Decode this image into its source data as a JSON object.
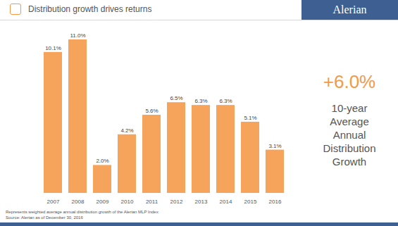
{
  "chart_data": {
    "type": "bar",
    "title": "Distribution growth drives returns",
    "brand": "Alerian",
    "categories": [
      "2007",
      "2008",
      "2009",
      "2010",
      "2011",
      "2012",
      "2013",
      "2014",
      "2015",
      "2016"
    ],
    "values": [
      10.1,
      11.0,
      2.0,
      4.2,
      5.6,
      6.5,
      6.3,
      6.3,
      5.1,
      3.1
    ],
    "value_labels": [
      "10.1%",
      "11.0%",
      "2.0%",
      "4.2%",
      "5.6%",
      "6.5%",
      "6.3%",
      "6.3%",
      "5.1%",
      "3.1%"
    ],
    "color": "#f6a35c",
    "data_labels": true,
    "tick_labels": "x",
    "summary": {
      "value": 6.0,
      "label": "+6.0%",
      "text": "10-year Average Annual Distribution Growth"
    },
    "notes": [
      "Represents weighted average annual distribution growth of the Alerian MLP Index",
      "Source: Alerian as of December 30, 2016"
    ]
  }
}
